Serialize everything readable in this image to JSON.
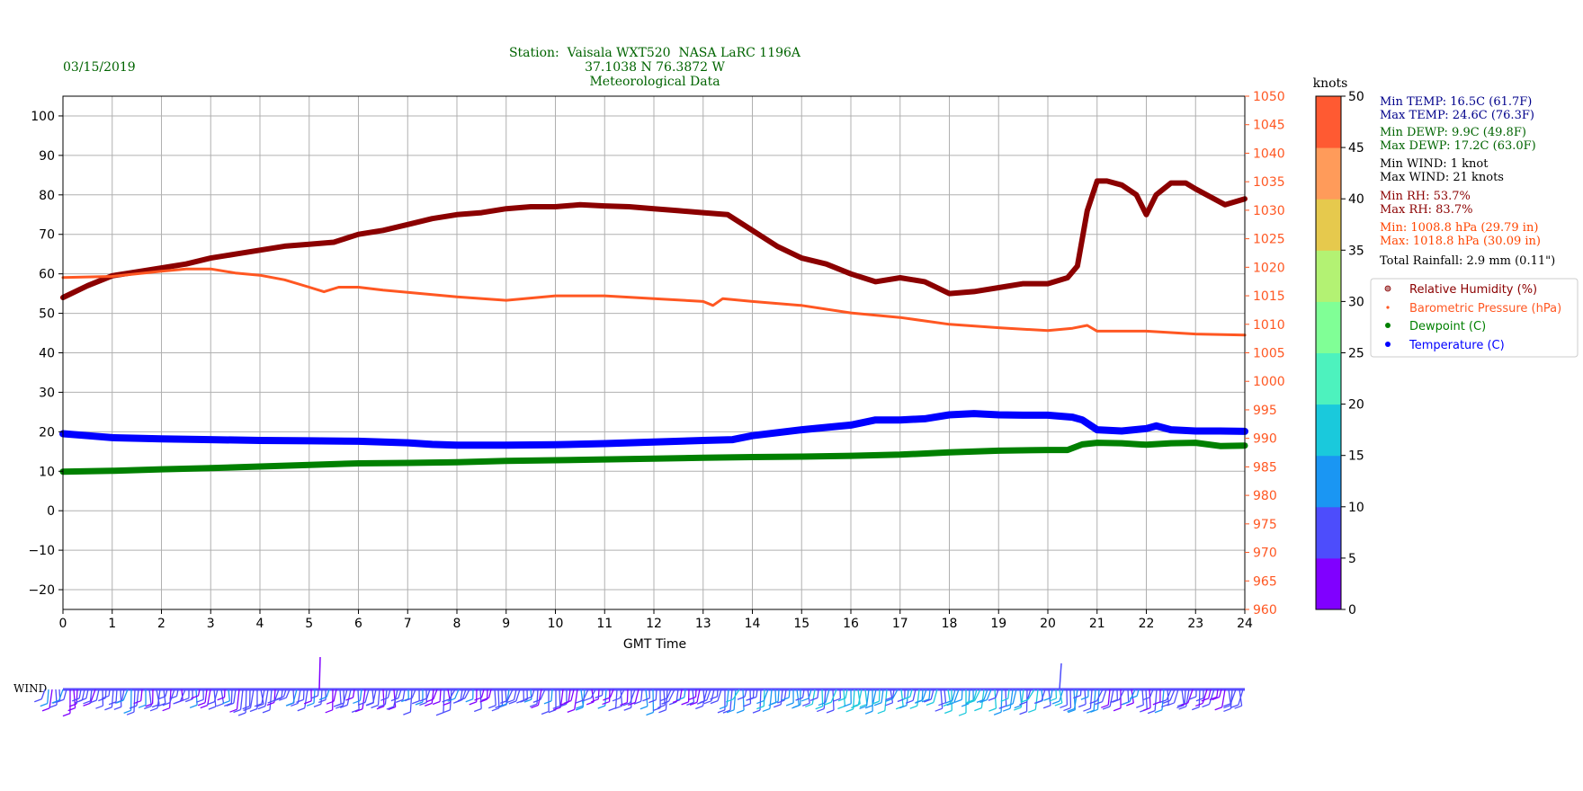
{
  "date": "03/15/2019",
  "title_lines": [
    "Station:  Vaisala WXT520  NASA LaRC 1196A",
    "37.1038 N 76.3872 W",
    "Meteorological Data"
  ],
  "stats": [
    {
      "text": "Min TEMP: 16.5C (61.7F)",
      "color": "#00008b"
    },
    {
      "text": "Max TEMP: 24.6C (76.3F)",
      "color": "#00008b"
    },
    {
      "text": "Min DEWP: 9.9C (49.8F)",
      "color": "#006400"
    },
    {
      "text": "Max DEWP: 17.2C (63.0F)",
      "color": "#006400"
    },
    {
      "text": "Min WIND: 1 knot",
      "color": "#000000"
    },
    {
      "text": "Max WIND: 21 knots",
      "color": "#000000"
    },
    {
      "text": "Min RH: 53.7%",
      "color": "#8b0000"
    },
    {
      "text": "Max RH: 83.7%",
      "color": "#8b0000"
    },
    {
      "text": "Min: 1008.8 hPa (29.79 in)",
      "color": "#ff4500"
    },
    {
      "text": "Max: 1018.8 hPa (30.09 in)",
      "color": "#ff4500"
    },
    {
      "text": "Total Rainfall: 2.9 mm (0.11\")",
      "color": "#000000"
    }
  ],
  "wind_label": "WIND",
  "colorbar": {
    "label": "knots",
    "ticks": [
      0,
      5,
      10,
      15,
      20,
      25,
      30,
      35,
      40,
      45,
      50
    ],
    "colors": [
      "#8000ff",
      "#4d4dfc",
      "#1a96f3",
      "#1ac9dc",
      "#4df2be",
      "#80ff96",
      "#b3f273",
      "#e6c94d",
      "#ff9b5a",
      "#ff5a32",
      "#ff0000"
    ]
  },
  "chart_data": {
    "type": "line",
    "xlabel": "GMT Time",
    "xlim": [
      0,
      24
    ],
    "x_ticks": [
      0,
      1,
      2,
      3,
      4,
      5,
      6,
      7,
      8,
      9,
      10,
      11,
      12,
      13,
      14,
      15,
      16,
      17,
      18,
      19,
      20,
      21,
      22,
      23,
      24
    ],
    "ylim_left": [
      -25,
      105
    ],
    "y_ticks_left": [
      -20,
      -10,
      0,
      10,
      20,
      30,
      40,
      50,
      60,
      70,
      80,
      90,
      100
    ],
    "ylim_right": [
      960,
      1050
    ],
    "y_ticks_right": [
      960,
      965,
      970,
      975,
      980,
      985,
      990,
      995,
      1000,
      1005,
      1010,
      1015,
      1020,
      1025,
      1030,
      1035,
      1040,
      1045,
      1050
    ],
    "grid": true,
    "legend_position": "right",
    "series": [
      {
        "name": "Relative Humidity (%)",
        "axis": "left",
        "color": "#8b0000",
        "x": [
          0,
          0.5,
          1,
          1.5,
          2,
          2.5,
          3,
          3.5,
          4,
          4.5,
          5,
          5.5,
          6,
          6.5,
          7,
          7.5,
          8,
          8.5,
          9,
          9.5,
          10,
          10.5,
          11,
          11.5,
          12,
          12.5,
          13,
          13.5,
          14,
          14.5,
          15,
          15.5,
          16,
          16.5,
          17,
          17.5,
          18,
          18.5,
          19,
          19.5,
          20,
          20.4,
          20.6,
          20.8,
          21,
          21.2,
          21.5,
          21.8,
          22,
          22.2,
          22.5,
          22.8,
          23,
          23.3,
          23.6,
          24
        ],
        "y": [
          54,
          57,
          59.5,
          60.5,
          61.5,
          62.5,
          64,
          65,
          66,
          67,
          67.5,
          68,
          70,
          71,
          72.5,
          74,
          75,
          75.5,
          76.5,
          77,
          77,
          77.5,
          77.2,
          77,
          76.5,
          76,
          75.5,
          75,
          71,
          67,
          64,
          62.5,
          60,
          58,
          59,
          58,
          55,
          55.5,
          56.5,
          57.5,
          57.5,
          59,
          62,
          76,
          83.5,
          83.5,
          82.5,
          80,
          75,
          80,
          83,
          83,
          81.5,
          79.5,
          77.5,
          79
        ]
      },
      {
        "name": "Barometric Pressure (hPa)",
        "axis": "right",
        "color": "#ff5722",
        "x": [
          0,
          1,
          2,
          2.5,
          3,
          3.5,
          4,
          4.5,
          5,
          5.3,
          5.6,
          6,
          6.5,
          7,
          8,
          9,
          10,
          11,
          12,
          13,
          13.2,
          13.4,
          14,
          15,
          16,
          17,
          18,
          19,
          20,
          20.5,
          20.8,
          21,
          22,
          23,
          24
        ],
        "y": [
          1018.2,
          1018.4,
          1019.3,
          1019.7,
          1019.7,
          1019,
          1018.6,
          1017.8,
          1016.5,
          1015.7,
          1016.5,
          1016.5,
          1016,
          1015.6,
          1014.8,
          1014.2,
          1015,
          1015,
          1014.5,
          1014,
          1013.3,
          1014.5,
          1014,
          1013.3,
          1012,
          1011.2,
          1010,
          1009.4,
          1008.9,
          1009.3,
          1009.8,
          1008.8,
          1008.8,
          1008.3,
          1008.1
        ]
      },
      {
        "name": "Dewpoint (C)",
        "axis": "left",
        "color": "#008000",
        "x": [
          0,
          1,
          2,
          3,
          4,
          5,
          6,
          7,
          8,
          9,
          10,
          11,
          12,
          13,
          14,
          15,
          16,
          17,
          18,
          19,
          20,
          20.4,
          20.7,
          21,
          21.5,
          22,
          22.5,
          23,
          23.5,
          24
        ],
        "y": [
          9.9,
          10.1,
          10.5,
          10.8,
          11.2,
          11.6,
          12,
          12.1,
          12.3,
          12.6,
          12.8,
          13,
          13.2,
          13.4,
          13.6,
          13.7,
          13.9,
          14.2,
          14.8,
          15.2,
          15.4,
          15.4,
          16.8,
          17.2,
          17.1,
          16.7,
          17.1,
          17.2,
          16.4,
          16.5
        ]
      },
      {
        "name": "Temperature (C)",
        "axis": "left",
        "color": "#0000ff",
        "x": [
          0,
          0.5,
          1,
          2,
          3,
          4,
          5,
          6,
          7,
          7.5,
          8,
          9,
          10,
          11,
          12,
          13,
          13.6,
          14,
          15,
          16,
          16.5,
          17,
          17.5,
          18,
          18.5,
          19,
          19.5,
          20,
          20.5,
          20.7,
          21,
          21.5,
          22,
          22.2,
          22.5,
          23,
          23.5,
          24
        ],
        "y": [
          19.5,
          19,
          18.5,
          18.2,
          18,
          17.8,
          17.7,
          17.6,
          17.2,
          16.8,
          16.6,
          16.6,
          16.7,
          17,
          17.4,
          17.8,
          18,
          19,
          20.5,
          21.7,
          23,
          23,
          23.3,
          24.3,
          24.6,
          24.3,
          24.2,
          24.2,
          23.7,
          23,
          20.5,
          20.2,
          20.8,
          21.5,
          20.5,
          20.2,
          20.2,
          20.1
        ]
      }
    ]
  }
}
